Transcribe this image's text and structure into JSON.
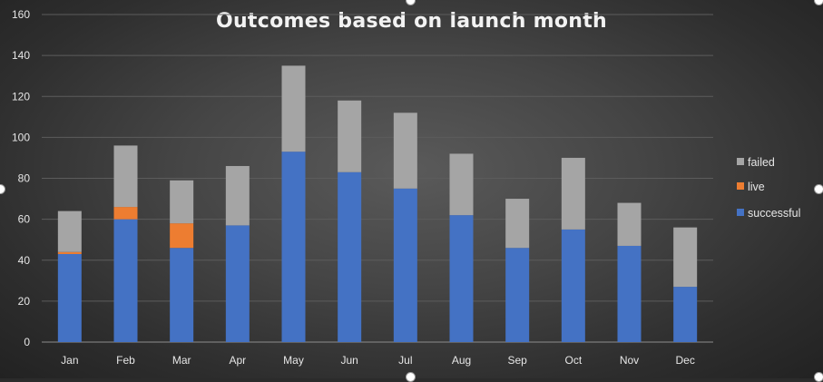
{
  "chart_data": {
    "type": "bar",
    "stacked": true,
    "title": "Outcomes based on launch month",
    "xlabel": "",
    "ylabel": "",
    "ylim": [
      0,
      160
    ],
    "yticks": [
      0,
      20,
      40,
      60,
      80,
      100,
      120,
      140,
      160
    ],
    "categories": [
      "Jan",
      "Feb",
      "Mar",
      "Apr",
      "May",
      "Jun",
      "Jul",
      "Aug",
      "Sep",
      "Oct",
      "Nov",
      "Dec"
    ],
    "series": [
      {
        "name": "successful",
        "color": "#4472c4",
        "values": [
          43,
          60,
          46,
          57,
          93,
          83,
          75,
          62,
          46,
          55,
          47,
          27
        ]
      },
      {
        "name": "live",
        "color": "#ed7d31",
        "values": [
          1,
          6,
          12,
          0,
          0,
          0,
          0,
          0,
          0,
          0,
          0,
          0
        ]
      },
      {
        "name": "failed",
        "color": "#a5a5a5",
        "values": [
          20,
          30,
          21,
          29,
          42,
          35,
          37,
          30,
          24,
          35,
          21,
          29
        ]
      }
    ],
    "legend": {
      "position": "right",
      "order": [
        "failed",
        "live",
        "successful"
      ]
    },
    "grid": true
  }
}
